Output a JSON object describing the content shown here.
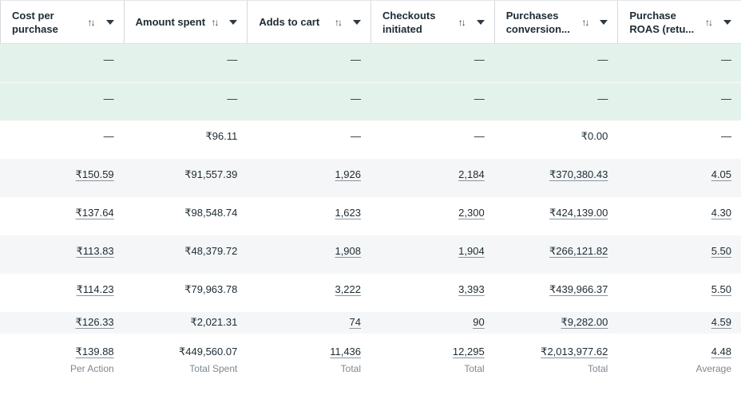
{
  "colors": {
    "accent_row": "#e3f3ec",
    "zebra_row": "#f5f6f7",
    "text": "#1c2b33",
    "muted": "#7f878f",
    "underline": "#8d949e",
    "border": "#d5d8dc"
  },
  "icons": {
    "sort_glyph": "↑↓",
    "caret": "chevron-down"
  },
  "empty_placeholder": "—",
  "header": {
    "columns": [
      {
        "id": "cost-per-purchase",
        "label": "Cost per purchase"
      },
      {
        "id": "amount-spent",
        "label": "Amount spent"
      },
      {
        "id": "adds-to-cart",
        "label": "Adds to cart"
      },
      {
        "id": "checkouts-initiated",
        "label": "Checkouts initiated"
      },
      {
        "id": "purchases-conversion",
        "label": "Purchases conversion..."
      },
      {
        "id": "purchase-roas",
        "label": "Purchase ROAS (retu..."
      }
    ]
  },
  "body": {
    "rows": [
      {
        "highlight": true,
        "cells": [
          {
            "text": "—",
            "link": false
          },
          {
            "text": "—",
            "link": false
          },
          {
            "text": "—",
            "link": false
          },
          {
            "text": "—",
            "link": false
          },
          {
            "text": "—",
            "link": false
          },
          {
            "text": "—",
            "link": false
          }
        ]
      },
      {
        "highlight": true,
        "cells": [
          {
            "text": "—",
            "link": false
          },
          {
            "text": "—",
            "link": false
          },
          {
            "text": "—",
            "link": false
          },
          {
            "text": "—",
            "link": false
          },
          {
            "text": "—",
            "link": false
          },
          {
            "text": "—",
            "link": false
          }
        ]
      },
      {
        "highlight": false,
        "cells": [
          {
            "text": "—",
            "link": false
          },
          {
            "text": "₹96.11",
            "link": false
          },
          {
            "text": "—",
            "link": false
          },
          {
            "text": "—",
            "link": false
          },
          {
            "text": "₹0.00",
            "link": false
          },
          {
            "text": "—",
            "link": false
          }
        ]
      },
      {
        "highlight": false,
        "cells": [
          {
            "text": "₹150.59",
            "link": true
          },
          {
            "text": "₹91,557.39",
            "link": false
          },
          {
            "text": "1,926",
            "link": true
          },
          {
            "text": "2,184",
            "link": true
          },
          {
            "text": "₹370,380.43",
            "link": true
          },
          {
            "text": "4.05",
            "link": true
          }
        ]
      },
      {
        "highlight": false,
        "cells": [
          {
            "text": "₹137.64",
            "link": true
          },
          {
            "text": "₹98,548.74",
            "link": false
          },
          {
            "text": "1,623",
            "link": true
          },
          {
            "text": "2,300",
            "link": true
          },
          {
            "text": "₹424,139.00",
            "link": true
          },
          {
            "text": "4.30",
            "link": true
          }
        ]
      },
      {
        "highlight": false,
        "cells": [
          {
            "text": "₹113.83",
            "link": true
          },
          {
            "text": "₹48,379.72",
            "link": false
          },
          {
            "text": "1,908",
            "link": true
          },
          {
            "text": "1,904",
            "link": true
          },
          {
            "text": "₹266,121.82",
            "link": true
          },
          {
            "text": "5.50",
            "link": true
          }
        ]
      },
      {
        "highlight": false,
        "cells": [
          {
            "text": "₹114.23",
            "link": true
          },
          {
            "text": "₹79,963.78",
            "link": false
          },
          {
            "text": "3,222",
            "link": true
          },
          {
            "text": "3,393",
            "link": true
          },
          {
            "text": "₹439,966.37",
            "link": true
          },
          {
            "text": "5.50",
            "link": true
          }
        ]
      },
      {
        "highlight": false,
        "cells": [
          {
            "text": "₹126.33",
            "link": true
          },
          {
            "text": "₹2,021.31",
            "link": false
          },
          {
            "text": "74",
            "link": true
          },
          {
            "text": "90",
            "link": true
          },
          {
            "text": "₹9,282.00",
            "link": true
          },
          {
            "text": "4.59",
            "link": true
          }
        ]
      }
    ]
  },
  "footer": {
    "cells": [
      {
        "value": "₹139.88",
        "label": "Per Action",
        "link": true
      },
      {
        "value": "₹449,560.07",
        "label": "Total Spent",
        "link": false
      },
      {
        "value": "11,436",
        "label": "Total",
        "link": true
      },
      {
        "value": "12,295",
        "label": "Total",
        "link": true
      },
      {
        "value": "₹2,013,977.62",
        "label": "Total",
        "link": true
      },
      {
        "value": "4.48",
        "label": "Average",
        "link": true
      }
    ]
  }
}
